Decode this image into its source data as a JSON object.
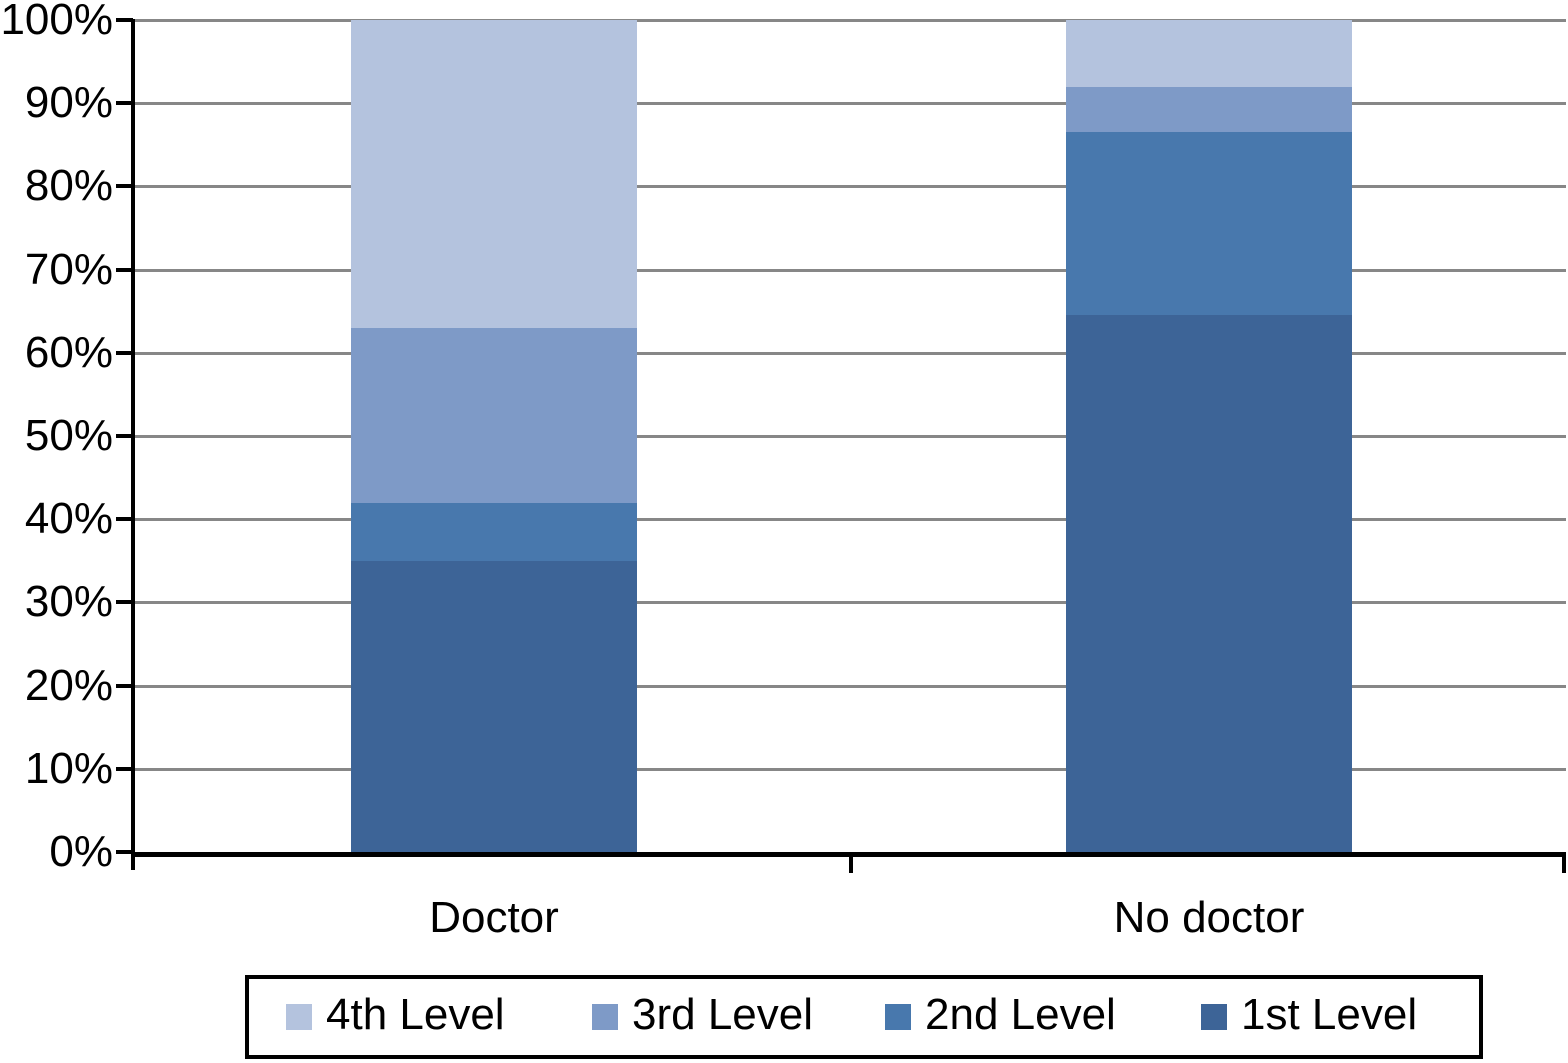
{
  "chart_data": {
    "type": "bar",
    "stacked": true,
    "title": "",
    "xlabel": "",
    "ylabel": "",
    "categories": [
      "Doctor",
      "No doctor"
    ],
    "series": [
      {
        "name": "1st Level",
        "values": [
          35,
          64.5
        ],
        "color": "#3d6497"
      },
      {
        "name": "2nd Level",
        "values": [
          7,
          22
        ],
        "color": "#4878ad"
      },
      {
        "name": "3rd Level",
        "values": [
          21,
          5.5
        ],
        "color": "#7e9ac7"
      },
      {
        "name": "4th Level",
        "values": [
          37,
          8
        ],
        "color": "#b4c3de"
      }
    ],
    "ylim": [
      0,
      100
    ],
    "y_ticks": [
      "0%",
      "10%",
      "20%",
      "30%",
      "40%",
      "50%",
      "60%",
      "70%",
      "80%",
      "90%",
      "100%"
    ],
    "grid": true,
    "gridline_color": "#878787",
    "axis_color": "#000000",
    "legend_position": "bottom"
  },
  "legend": {
    "items": [
      {
        "label": "4th Level",
        "color": "#b4c3de"
      },
      {
        "label": "3rd Level",
        "color": "#7e9ac7"
      },
      {
        "label": "2nd Level",
        "color": "#4878ad"
      },
      {
        "label": "1st Level",
        "color": "#3d6497"
      }
    ]
  }
}
